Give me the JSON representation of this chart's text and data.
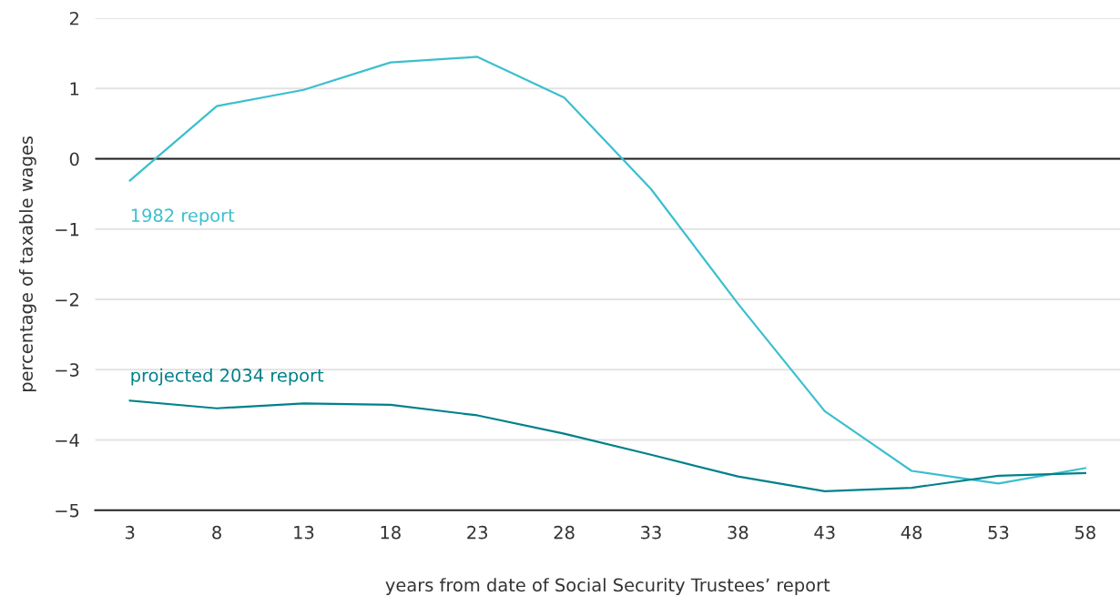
{
  "chart_data": {
    "type": "line",
    "xlabel": "years from date of Social Security Trustees’ report",
    "ylabel": "percentage of taxable wages",
    "categories": [
      "3",
      "8",
      "13",
      "18",
      "23",
      "28",
      "33",
      "38",
      "43",
      "48",
      "53",
      "58"
    ],
    "series": [
      {
        "name": "1982 report",
        "color": "#3bbfcf",
        "values": [
          -0.31,
          0.75,
          0.98,
          1.37,
          1.45,
          0.87,
          -0.43,
          -2.06,
          -3.59,
          -4.44,
          -4.62,
          -4.4
        ]
      },
      {
        "name": "projected 2034 report",
        "color": "#00818a",
        "values": [
          -3.44,
          -3.55,
          -3.48,
          -3.5,
          -3.65,
          -3.91,
          -4.21,
          -4.52,
          -4.73,
          -4.68,
          -4.51,
          -4.47
        ]
      }
    ],
    "ylim": [
      -5,
      2
    ],
    "yticks": [
      {
        "value": -5,
        "label": "−5"
      },
      {
        "value": -4,
        "label": "−4"
      },
      {
        "value": -3,
        "label": "−3"
      },
      {
        "value": -2,
        "label": "−2"
      },
      {
        "value": -1,
        "label": "−1"
      },
      0,
      1,
      2
    ],
    "grid": "y",
    "legend": false,
    "marker": "none",
    "line_style": "solid",
    "ref_lines": [
      {
        "axis": "y",
        "value": 0,
        "color": "#222222"
      }
    ]
  }
}
